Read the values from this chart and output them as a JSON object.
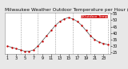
{
  "title": "Milwaukee Weather Outdoor Temperature per Hour (24 Hours)",
  "background_color": "#e8e8e8",
  "plot_bg_color": "#ffffff",
  "line_color": "#000000",
  "dot_color": "#cc0000",
  "legend_bg": "#cc0000",
  "legend_border": "#ffffff",
  "hours": [
    1,
    2,
    3,
    4,
    5,
    6,
    7,
    8,
    9,
    10,
    11,
    12,
    13,
    14,
    15,
    16,
    17,
    18,
    19,
    20,
    21,
    22,
    23,
    24
  ],
  "temps": [
    30,
    29,
    28,
    27,
    26,
    26,
    27,
    30,
    34,
    38,
    42,
    46,
    49,
    51,
    52,
    51,
    49,
    46,
    42,
    38,
    35,
    33,
    32,
    31
  ],
  "ylim": [
    24,
    56
  ],
  "yticks": [
    25,
    30,
    35,
    40,
    45,
    50,
    55
  ],
  "ytick_labels": [
    "25",
    "30",
    "35",
    "40",
    "45",
    "50",
    "55"
  ],
  "xtick_positions": [
    1,
    3,
    5,
    7,
    9,
    11,
    13,
    15,
    17,
    19,
    21,
    23
  ],
  "xtick_labels": [
    "1",
    "3",
    "5",
    "7",
    "9",
    "11",
    "13",
    "15",
    "17",
    "19",
    "21",
    "23"
  ],
  "vgrid_positions": [
    4,
    8,
    12,
    16,
    20,
    24
  ],
  "title_fontsize": 4.2,
  "tick_fontsize": 3.5,
  "dot_size": 3,
  "legend_text": "Outdoor Temp",
  "legend_fontsize": 3.2
}
